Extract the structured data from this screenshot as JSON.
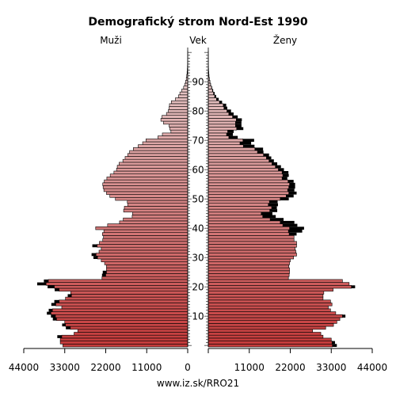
{
  "chart_data": {
    "type": "bar",
    "subtype": "population-pyramid",
    "title": "Demografický strom Nord-Est 1990",
    "left_label": "Muži",
    "center_label": "Vek",
    "right_label": "Ženy",
    "footer": "www.iz.sk/RRO21",
    "x_ticks_left": [
      "44000",
      "33000",
      "22000",
      "11000",
      "0"
    ],
    "x_ticks_right": [
      "11000",
      "22000",
      "33000",
      "44000"
    ],
    "x_max": 44000,
    "age_ticks": [
      "10",
      "20",
      "30",
      "40",
      "50",
      "60",
      "70",
      "80",
      "90"
    ],
    "ages": [
      0,
      1,
      2,
      3,
      4,
      5,
      6,
      7,
      8,
      9,
      10,
      11,
      12,
      13,
      14,
      15,
      16,
      17,
      18,
      19,
      20,
      21,
      22,
      23,
      24,
      25,
      26,
      27,
      28,
      29,
      30,
      31,
      32,
      33,
      34,
      35,
      36,
      37,
      38,
      39,
      40,
      41,
      42,
      43,
      44,
      45,
      46,
      47,
      48,
      49,
      50,
      51,
      52,
      53,
      54,
      55,
      56,
      57,
      58,
      59,
      60,
      61,
      62,
      63,
      64,
      65,
      66,
      67,
      68,
      69,
      70,
      71,
      72,
      73,
      74,
      75,
      76,
      77,
      78,
      79,
      80,
      81,
      82,
      83,
      84,
      85,
      86,
      87,
      88,
      89,
      90,
      91,
      92,
      93,
      94,
      95,
      96,
      97,
      98,
      99,
      100
    ],
    "colors": {
      "bar_edge": "#000000",
      "male_young": "#c43a3a",
      "male_old": "#e8d6d6",
      "female_young": "#c43a3a",
      "female_old": "#e8d6d6",
      "deficit": "#000000"
    },
    "series": [
      {
        "name": "Muži",
        "values": [
          33500,
          34200,
          34200,
          33800,
          30500,
          29500,
          31500,
          32800,
          33000,
          35200,
          35500,
          36700,
          36300,
          33800,
          35400,
          34500,
          32800,
          31200,
          31400,
          34500,
          35800,
          38000,
          37400,
          23000,
          22000,
          21800,
          21800,
          21800,
          22300,
          23200,
          24200,
          24600,
          23800,
          23200,
          24300,
          23700,
          22800,
          22600,
          22900,
          22500,
          24700,
          21500,
          18300,
          17300,
          14900,
          14800,
          17200,
          17000,
          16100,
          16200,
          19400,
          20900,
          21800,
          22500,
          22700,
          22800,
          22400,
          21700,
          20800,
          19800,
          19100,
          18900,
          18400,
          17400,
          16800,
          16100,
          15600,
          14600,
          13300,
          12100,
          11200,
          8000,
          6800,
          4500,
          4800,
          5000,
          6500,
          7200,
          6900,
          5700,
          5200,
          5000,
          4900,
          4400,
          3300,
          2500,
          2100,
          1600,
          1100,
          800,
          550,
          380,
          260,
          170,
          110,
          70,
          45,
          25,
          15,
          8,
          4
        ],
        "excess": [
          0,
          0,
          0,
          1200,
          0,
          0,
          1200,
          900,
          0,
          1000,
          1200,
          1100,
          1000,
          0,
          1200,
          1300,
          0,
          1000,
          0,
          1200,
          1800,
          2400,
          1200,
          0,
          1000,
          1000,
          0,
          0,
          0,
          0,
          1100,
          1200,
          0,
          0,
          1300,
          0,
          0,
          0,
          0,
          0,
          0,
          0,
          0,
          0,
          0,
          0,
          0,
          0,
          0,
          0,
          0,
          0,
          0,
          0,
          0,
          0,
          0,
          0,
          0,
          0,
          0,
          0,
          0,
          0,
          0,
          0,
          0,
          0,
          0,
          0,
          0,
          0,
          0,
          0,
          0,
          0,
          0,
          0,
          0,
          0,
          0,
          0,
          0,
          0,
          0,
          0,
          0,
          0,
          0,
          0,
          0,
          0,
          0,
          0,
          0,
          0,
          0,
          0,
          0,
          0,
          0
        ]
      },
      {
        "name": "Ženy",
        "values": [
          33300,
          33200,
          33000,
          30800,
          30200,
          28000,
          31500,
          33600,
          34500,
          35300,
          36000,
          34200,
          32800,
          32200,
          33200,
          32800,
          30800,
          30800,
          31000,
          33500,
          38400,
          37800,
          36000,
          21500,
          21700,
          21800,
          21800,
          21600,
          21800,
          22000,
          22900,
          23700,
          23500,
          23300,
          23700,
          23700,
          23000,
          23000,
          21700,
          21500,
          21800,
          20000,
          19300,
          16600,
          14600,
          14200,
          16500,
          17000,
          16100,
          16400,
          19300,
          20900,
          21600,
          21300,
          21600,
          21800,
          21400,
          19800,
          20000,
          19800,
          18800,
          18000,
          17100,
          16300,
          15600,
          14800,
          13200,
          12500,
          9400,
          8500,
          9300,
          5500,
          4900,
          5200,
          7600,
          7300,
          7300,
          7500,
          6500,
          5500,
          5000,
          4200,
          4000,
          3000,
          2200,
          1700,
          1400,
          1100,
          850,
          600,
          420,
          280,
          190,
          120,
          80,
          50,
          30,
          18,
          10,
          5,
          2
        ],
        "excess": [
          1200,
          800,
          0,
          0,
          0,
          0,
          0,
          0,
          0,
          0,
          800,
          0,
          0,
          0,
          0,
          0,
          0,
          0,
          0,
          0,
          1000,
          0,
          0,
          0,
          0,
          0,
          0,
          0,
          0,
          0,
          0,
          0,
          0,
          0,
          0,
          0,
          0,
          0,
          2000,
          3700,
          3900,
          3900,
          3800,
          3600,
          3500,
          3000,
          2000,
          1400,
          2600,
          2200,
          2300,
          2000,
          2100,
          1800,
          1700,
          1500,
          1500,
          1400,
          1600,
          1700,
          1500,
          1500,
          1400,
          1300,
          1300,
          1500,
          1600,
          2200,
          3000,
          3000,
          3000,
          2400,
          1700,
          1600,
          1800,
          1600,
          1600,
          1500,
          1400,
          1300,
          1100,
          900,
          800,
          700,
          600,
          400,
          300,
          200,
          150,
          100,
          80,
          50,
          30,
          20,
          10,
          6,
          3,
          2,
          1,
          0,
          0
        ]
      }
    ]
  }
}
